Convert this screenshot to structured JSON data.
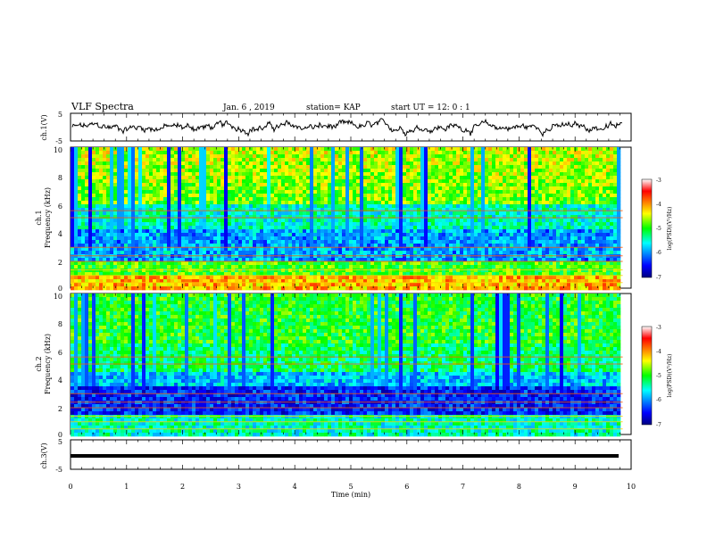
{
  "header": {
    "title": "VLF Spectra",
    "date": "Jan. 6 , 2019",
    "station": "station= KAP",
    "start_ut": "start UT = 12: 0 : 1"
  },
  "chart_data": [
    {
      "type": "line",
      "ylabel": "ch.1(V)",
      "ylim": [
        -5,
        5
      ],
      "yticks": [
        "5",
        "-5"
      ],
      "xlim": [
        0,
        9.85
      ],
      "description_of_trace": "noisy waveform around ~0 V"
    },
    {
      "type": "heatmap",
      "ylabel": "ch.1",
      "ylabel2": "Frequency (kHz)",
      "ylim": [
        0,
        10
      ],
      "yticks": [
        "10",
        "8",
        "6",
        "4",
        "2",
        "0"
      ],
      "xlim": [
        0,
        9.85
      ],
      "colorbar": {
        "label": "log(PSD)(V²/Hz)",
        "range": [
          -7,
          -3
        ],
        "ticks": [
          "-3",
          "-4",
          "-5",
          "-6",
          "-7"
        ],
        "colormap": "jet"
      }
    },
    {
      "type": "heatmap",
      "ylabel": "ch.2",
      "ylabel2": "Frequency (kHz)",
      "ylim": [
        0,
        10
      ],
      "yticks": [
        "10",
        "8",
        "6",
        "4",
        "2",
        "0"
      ],
      "xlim": [
        0,
        9.85
      ],
      "colorbar": {
        "label": "log(PSD)(V²/Hz)",
        "range": [
          -7,
          -3
        ],
        "ticks": [
          "-3",
          "-4",
          "-5",
          "-6",
          "-7"
        ],
        "colormap": "jet"
      }
    },
    {
      "type": "line",
      "ylabel": "ch.3(V)",
      "ylim": [
        -5,
        5
      ],
      "yticks": [
        "5",
        "-5"
      ],
      "xlim": [
        0,
        9.85
      ],
      "constant_value": 0
    }
  ],
  "xaxis": {
    "label": "Time (min)",
    "range": [
      0,
      10
    ],
    "ticks": [
      "0",
      "1",
      "2",
      "3",
      "4",
      "5",
      "6",
      "7",
      "8",
      "9",
      "10"
    ]
  }
}
